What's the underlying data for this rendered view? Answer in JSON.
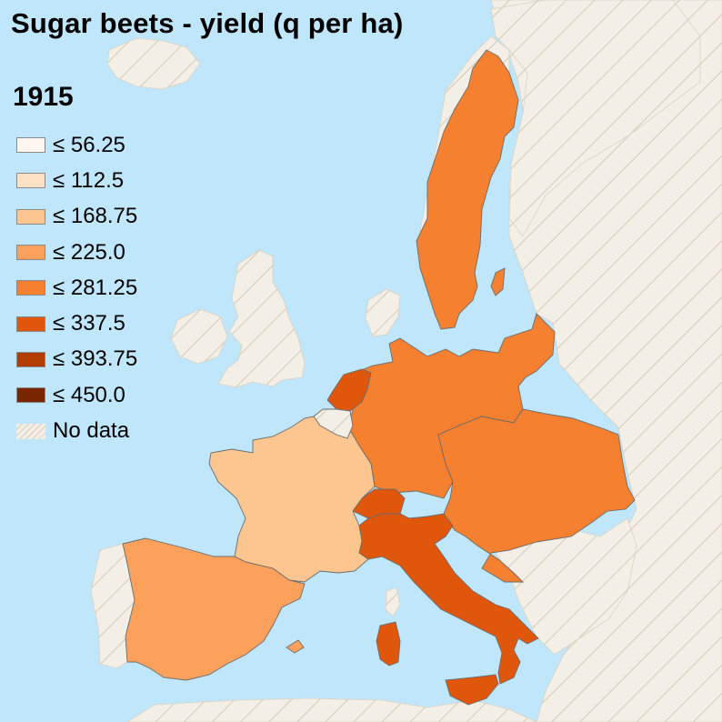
{
  "title": "Sugar beets - yield (q per ha)",
  "year": "1915",
  "legend": [
    {
      "label": "≤ 56.25",
      "color": "#fef6ef"
    },
    {
      "label": "≤ 112.5",
      "color": "#fee2c6"
    },
    {
      "label": "≤ 168.75",
      "color": "#fdc691"
    },
    {
      "label": "≤ 225.0",
      "color": "#fca15c"
    },
    {
      "label": "≤ 281.25",
      "color": "#f5802f"
    },
    {
      "label": "≤ 337.5",
      "color": "#e0570c"
    },
    {
      "label": "≤ 393.75",
      "color": "#b13d03"
    },
    {
      "label": "≤ 450.0",
      "color": "#7a2502"
    },
    {
      "label": "No data",
      "color": "nodata"
    }
  ],
  "regions": [
    {
      "name": "Sweden",
      "bin": "≤ 281.25",
      "color": "#f5802f"
    },
    {
      "name": "German Empire",
      "bin": "≤ 281.25",
      "color": "#f5802f"
    },
    {
      "name": "Austria-Hungary",
      "bin": "≤ 281.25",
      "color": "#f5802f"
    },
    {
      "name": "Netherlands",
      "bin": "≤ 337.5",
      "color": "#e0570c"
    },
    {
      "name": "Italy",
      "bin": "≤ 337.5",
      "color": "#e0570c"
    },
    {
      "name": "Switzerland",
      "bin": "≤ 337.5",
      "color": "#e0570c"
    },
    {
      "name": "France",
      "bin": "≤ 168.75",
      "color": "#fdc691"
    },
    {
      "name": "Spain",
      "bin": "≤ 225.0",
      "color": "#fca15c"
    },
    {
      "name": "Belgium",
      "bin": "No data",
      "color": "nodata"
    }
  ]
}
